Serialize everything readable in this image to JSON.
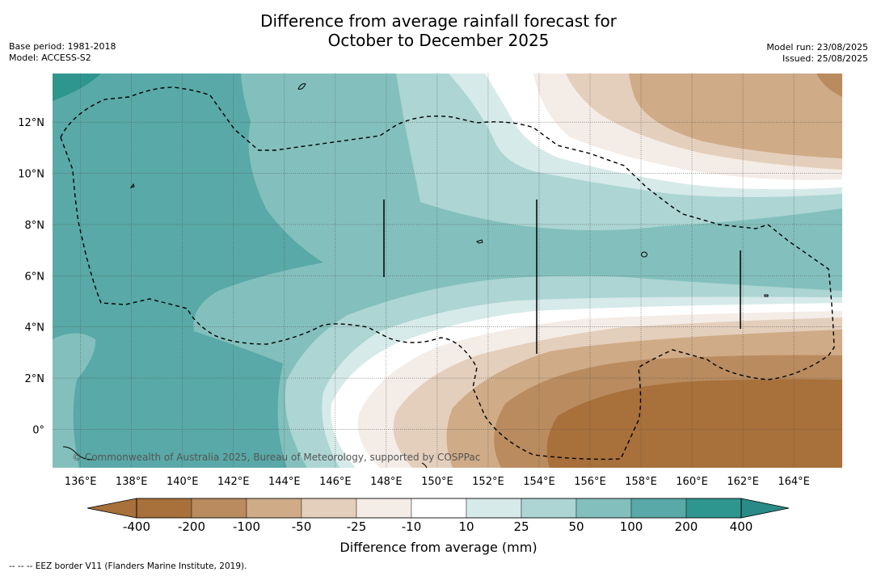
{
  "title_line1": "Difference from average rainfall forecast for",
  "title_line2": "October to December 2025",
  "meta": {
    "base_period": "Base period: 1981-2018",
    "model": "Model: ACCESS-S2",
    "model_run": "Model run: 23/08/2025",
    "issued": "Issued: 25/08/2025"
  },
  "map": {
    "copyright": "© Commonwealth of Australia 2025, Bureau of Meteorology, supported by COSPPac",
    "lon_labels": [
      "136°E",
      "138°E",
      "140°E",
      "142°E",
      "144°E",
      "146°E",
      "148°E",
      "150°E",
      "152°E",
      "154°E",
      "156°E",
      "158°E",
      "160°E",
      "162°E",
      "164°E"
    ],
    "lat_labels": [
      "12°N",
      "10°N",
      "8°N",
      "6°N",
      "4°N",
      "2°N",
      "0°"
    ],
    "lon_range": [
      134.9,
      165.9
    ],
    "lat_range": [
      -1.5,
      13.9
    ],
    "overlays": [
      "EEZ boundary (dashed)",
      "meridian gridlines",
      "parallel gridlines"
    ]
  },
  "colorbar": {
    "ticks": [
      "-400",
      "-200",
      "-100",
      "-50",
      "-25",
      "-10",
      "10",
      "25",
      "50",
      "100",
      "200",
      "400"
    ],
    "colors": [
      "#a8703a",
      "#b98b5f",
      "#cfab87",
      "#e4cfbc",
      "#f4ece7",
      "#ffffff",
      "#d6eae9",
      "#acd5d3",
      "#83c0bd",
      "#58a9a7",
      "#2f958f",
      "#2a8a87"
    ],
    "label": "Difference from average (mm)",
    "dry_end_color": "#a8703a",
    "wet_end_color": "#2a8a87"
  },
  "footnote": "--  --  -- EEZ border V11 (Flanders Marine Institute, 2019)."
}
